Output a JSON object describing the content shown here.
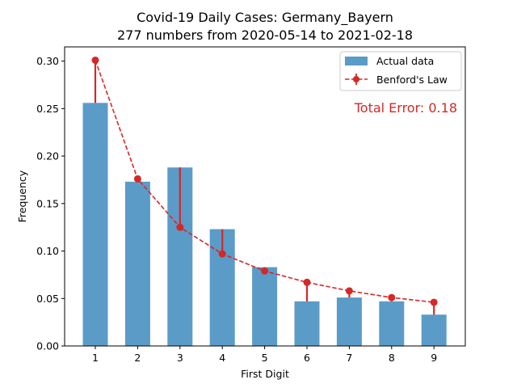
{
  "chart_data": {
    "type": "bar",
    "title": "Covid-19 Daily Cases: Germany_Bayern",
    "subtitle": "277 numbers from 2020-05-14 to 2021-02-18",
    "xlabel": "First Digit",
    "ylabel": "Frequency",
    "categories": [
      "1",
      "2",
      "3",
      "4",
      "5",
      "6",
      "7",
      "8",
      "9"
    ],
    "ylim": [
      0,
      0.315
    ],
    "yticks": [
      "0.00",
      "0.05",
      "0.10",
      "0.15",
      "0.20",
      "0.25",
      "0.30"
    ],
    "grid": false,
    "legend_position": "top-right",
    "series": [
      {
        "name": "Actual data",
        "kind": "bar",
        "color": "#5b9bc7",
        "values": [
          0.256,
          0.173,
          0.188,
          0.123,
          0.083,
          0.047,
          0.051,
          0.047,
          0.033
        ]
      },
      {
        "name": "Benford's Law",
        "kind": "line",
        "color": "#d62728",
        "style": "dashed",
        "values": [
          0.301,
          0.176,
          0.125,
          0.097,
          0.079,
          0.067,
          0.058,
          0.051,
          0.046
        ]
      }
    ],
    "annotation": {
      "text": "Total Error: 0.18",
      "color": "#d62728",
      "position": "top-right"
    }
  }
}
